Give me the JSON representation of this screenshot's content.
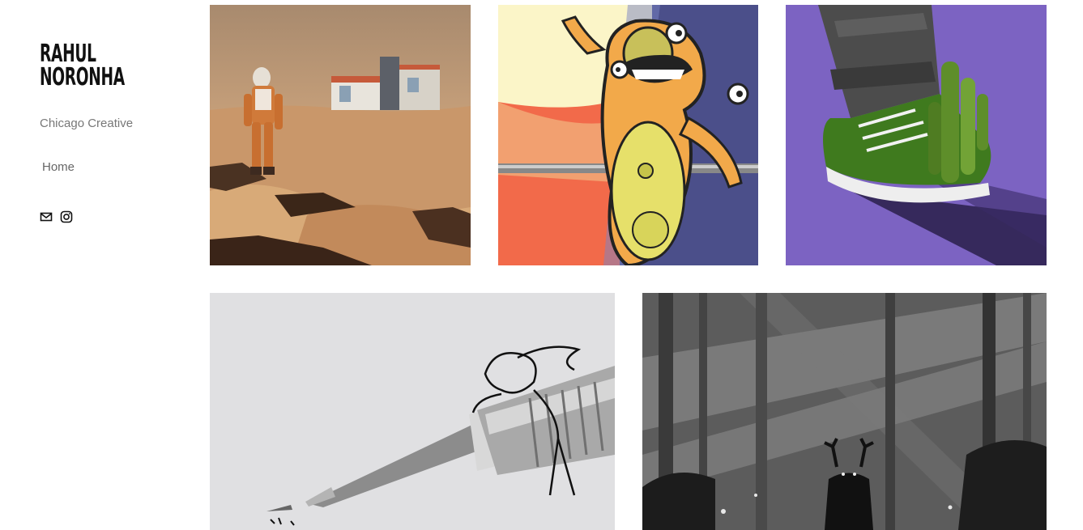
{
  "site": {
    "title_line1": "RAHUL",
    "title_line2": "NORONHA",
    "tagline": "Chicago Creative"
  },
  "nav": {
    "home_label": "Home"
  },
  "social": [
    {
      "icon": "mail-icon"
    },
    {
      "icon": "instagram-icon"
    }
  ],
  "gallery": [
    {
      "subject": "astronaut-on-mars-with-shop",
      "colors": {
        "sand": "#c79a6a",
        "sky": "#b98c63"
      }
    },
    {
      "subject": "orange-cartoon-creature",
      "colors": {
        "creature": "#f2a94a",
        "bg": "#4b4f8a"
      }
    },
    {
      "subject": "sneaker-with-cactus",
      "colors": {
        "bg": "#7c63c2",
        "shoe": "#3f7a1e"
      }
    },
    {
      "subject": "pencil-with-doodle",
      "colors": {
        "bg": "#e2e2e2",
        "metal": "#8f8f8f"
      }
    },
    {
      "subject": "deer-in-dark-forest",
      "colors": {
        "bg": "#5a5a5a"
      }
    }
  ]
}
